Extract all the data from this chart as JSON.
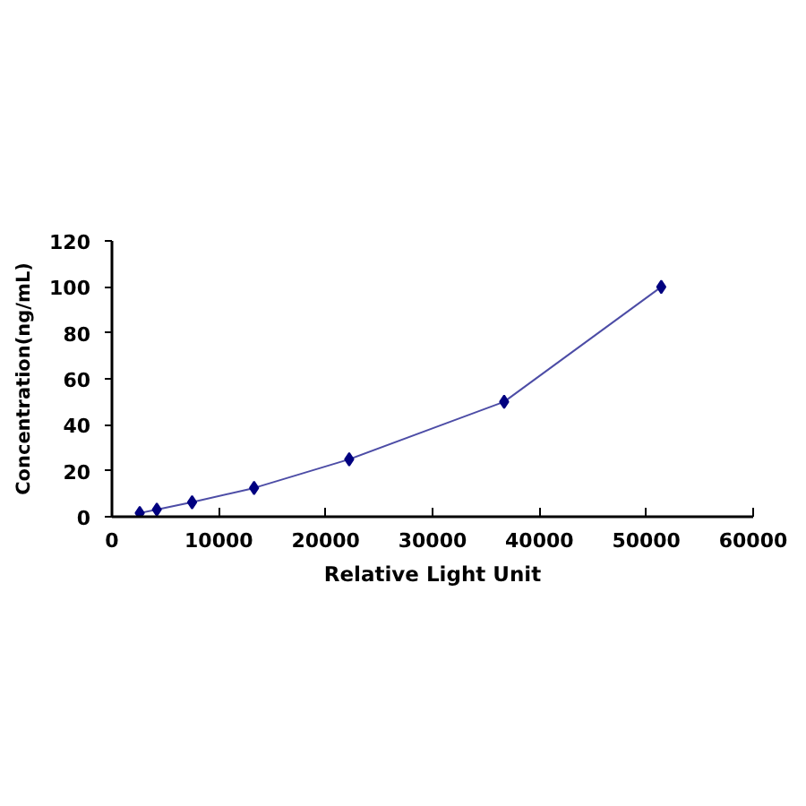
{
  "chart_data": {
    "type": "line",
    "xlabel": "Relative Light Unit",
    "ylabel": "Concentration(ng/mL)",
    "x": [
      2600,
      4200,
      7500,
      13300,
      22200,
      36700,
      51400
    ],
    "series": [
      {
        "color": "#000080",
        "values": [
          1.6,
          3.1,
          6.3,
          12.5,
          25,
          50,
          100
        ]
      }
    ],
    "xlim": [
      0,
      60000
    ],
    "ylim": [
      0,
      120
    ],
    "xticks": [
      0,
      10000,
      20000,
      30000,
      40000,
      50000,
      60000
    ],
    "yticks": [
      0,
      20,
      40,
      60,
      80,
      100,
      120
    ],
    "grid": false,
    "marker": "diamond",
    "line_style": "solid"
  }
}
